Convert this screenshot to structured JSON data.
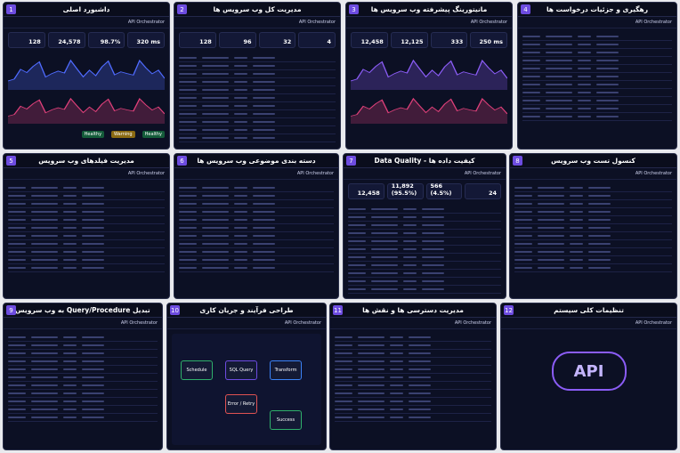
{
  "app": "API Orchestrator",
  "panels": [
    {
      "number": "1",
      "title": "داشبورد اصلی",
      "kind": "dash",
      "stats": [
        "128",
        "24,578",
        "98.7%",
        "320 ms"
      ],
      "chips": [
        "Healthy",
        "Warning",
        "Healthy"
      ]
    },
    {
      "number": "2",
      "title": "مدیریت کل وب سرویس ها",
      "kind": "table",
      "stats": [
        "128",
        "96",
        "32",
        "4"
      ]
    },
    {
      "number": "3",
      "title": "مانیتورینگ پیشرفته وب سرویس ها",
      "kind": "dash",
      "stats": [
        "12,458",
        "12,125",
        "333",
        "250 ms"
      ]
    },
    {
      "number": "4",
      "title": "رهگیری و جزئیات درخواست ها",
      "kind": "table",
      "stats": []
    },
    {
      "number": "5",
      "title": "مدیریت فیلدهای وب سرویس",
      "kind": "table",
      "stats": []
    },
    {
      "number": "6",
      "title": "دسته بندی موضوعی وب سرویس ها",
      "kind": "table",
      "stats": []
    },
    {
      "number": "7",
      "title": "کیفیت داده ها - Data Quality",
      "kind": "table",
      "stats": [
        "12,458",
        "11,892 (95.5%)",
        "566 (4.5%)",
        "24"
      ]
    },
    {
      "number": "8",
      "title": "کنسول تست وب سرویس",
      "kind": "table",
      "stats": []
    },
    {
      "number": "9",
      "title": "تبدیل Query/Procedure به وب سرویس",
      "kind": "table",
      "stats": []
    },
    {
      "number": "10",
      "title": "طراحی فرآیند و جریان کاری",
      "kind": "flow",
      "stats": [],
      "nodes": [
        "Schedule",
        "SQL Query",
        "Transform",
        "Error / Retry",
        "Success"
      ]
    },
    {
      "number": "11",
      "title": "مدیریت دسترسی ها و نقش ها",
      "kind": "table",
      "stats": []
    },
    {
      "number": "12",
      "title": "تنظیمات کلی سیستم",
      "kind": "settings",
      "stats": [],
      "logo": "API"
    }
  ]
}
